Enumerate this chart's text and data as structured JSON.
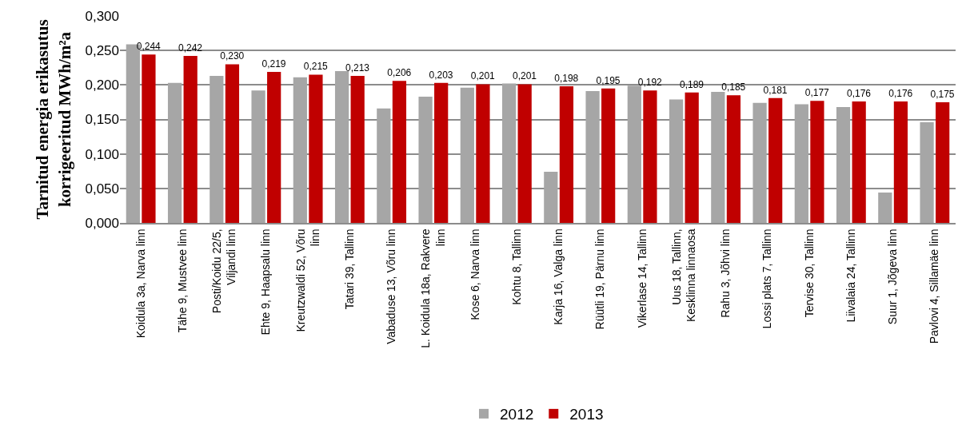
{
  "chart_data": {
    "type": "bar",
    "ylabel": "Tarnitud energia erikasutus korrigeeritud MWh/m²a",
    "categories": [
      "Koidula 3a, Narva linn",
      "Tähe 9, Mustvee linn",
      "Posti/Koidu 22/5, Viljandi linn",
      "Ehte 9, Haapsalu linn",
      "Kreutzwaldi 52, Võru linn",
      "Tatari 39, Tallinn",
      "Vabaduse 13, Võru linn",
      "L. Koidula 18a, Rakvere linn",
      "Kose 6, Narva linn",
      "Kohtu 8, Tallinn",
      "Karja 16, Valga linn",
      "Rüütli 19, Pärnu linn",
      "Vikerlase 14, Tallinn",
      "Uus 18, Tallinn, Kesklinna linnaosa",
      "Rahu 3, Jõhvi linn",
      "Lossi plats 7, Tallinn",
      "Tervise 30, Tallinn",
      "Liivalaia 24, Tallinn",
      "Suur 1, Jõgeva linn",
      "Pavlovi 4, Sillamäe linn"
    ],
    "series": [
      {
        "name": "2012",
        "color": "#a6a6a6",
        "values": [
          0.259,
          0.203,
          0.213,
          0.192,
          0.211,
          0.22,
          0.166,
          0.183,
          0.196,
          0.202,
          0.074,
          0.191,
          0.199,
          0.179,
          0.19,
          0.174,
          0.172,
          0.168,
          0.044,
          0.146
        ]
      },
      {
        "name": "2013",
        "color": "#c00000",
        "values": [
          0.244,
          0.242,
          0.23,
          0.219,
          0.215,
          0.213,
          0.206,
          0.203,
          0.201,
          0.201,
          0.198,
          0.195,
          0.192,
          0.189,
          0.185,
          0.181,
          0.177,
          0.176,
          0.176,
          0.175
        ],
        "value_labels": [
          "0,244",
          "0,242",
          "0,230",
          "0,219",
          "0,215",
          "0,213",
          "0,206",
          "0,203",
          "0,201",
          "0,201",
          "0,198",
          "0,195",
          "0,192",
          "0,189",
          "0,185",
          "0,181",
          "0,177",
          "0,176",
          "0,176",
          "0,175"
        ]
      }
    ],
    "ylim": [
      0,
      0.3
    ],
    "yticks": [
      {
        "value": 0,
        "label": "0,000"
      },
      {
        "value": 0.05,
        "label": "0,050"
      },
      {
        "value": 0.1,
        "label": "0,100"
      },
      {
        "value": 0.15,
        "label": "0,150"
      },
      {
        "value": 0.2,
        "label": "0,200"
      },
      {
        "value": 0.25,
        "label": "0,250"
      },
      {
        "value": 0.3,
        "label": "0,300"
      }
    ],
    "grid": "y",
    "legend": "bottom"
  }
}
